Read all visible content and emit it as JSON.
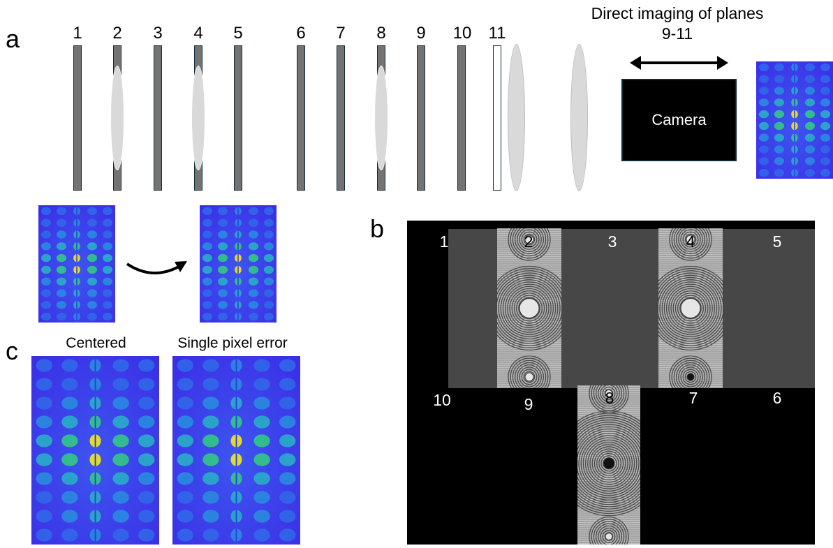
{
  "panel_a": {
    "letter": "a",
    "plane_labels": [
      "1",
      "2",
      "3",
      "4",
      "5",
      "6",
      "7",
      "8",
      "9",
      "10",
      "11"
    ],
    "imaging_text_line1": "Direct imaging of planes",
    "imaging_text_line2": "9-11",
    "camera_label": "Camera"
  },
  "panel_b": {
    "letter": "b",
    "top_row_labels": [
      "1",
      "2",
      "3",
      "4",
      "5"
    ],
    "bottom_row_labels": [
      "10",
      "9",
      "8",
      "7",
      "6"
    ]
  },
  "panel_c": {
    "letter": "c",
    "left_label": "Centered",
    "right_label": "Single pixel error"
  },
  "colors": {
    "plane_gray": "#737373",
    "plane_border": "#0e2a36",
    "lens_fill": "#d9d9d9",
    "slm_gray": "#474747",
    "slm_black": "#000000",
    "spot_bg": "#3b3df0"
  }
}
